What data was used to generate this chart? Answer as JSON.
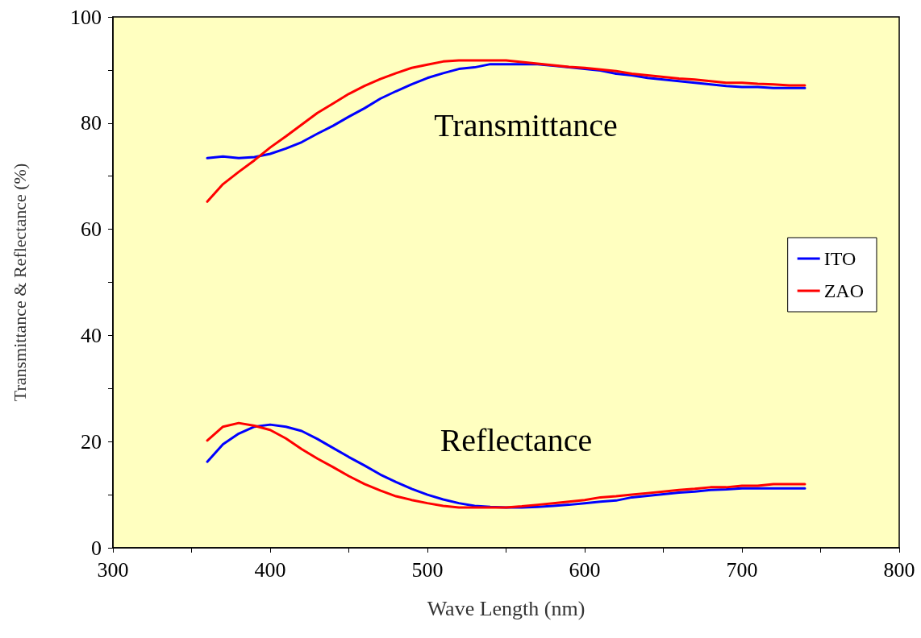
{
  "chart_data": {
    "type": "line",
    "xlabel": "Wave Length (nm)",
    "ylabel": "Transmittance & Reflectance (%)",
    "x": [
      360,
      370,
      380,
      390,
      400,
      410,
      420,
      430,
      440,
      450,
      460,
      470,
      480,
      490,
      500,
      510,
      520,
      530,
      540,
      550,
      560,
      570,
      580,
      590,
      600,
      610,
      620,
      630,
      640,
      650,
      660,
      670,
      680,
      690,
      700,
      710,
      720,
      730,
      740
    ],
    "series": [
      {
        "name": "ITO",
        "color": "#0000ff",
        "values": [
          73.4,
          73.7,
          73.4,
          73.6,
          74.2,
          75.2,
          76.4,
          78.0,
          79.5,
          81.2,
          82.8,
          84.6,
          86.0,
          87.3,
          88.5,
          89.4,
          90.2,
          90.5,
          91.1,
          91.1,
          91.1,
          91.1,
          90.8,
          90.5,
          90.2,
          89.9,
          89.3,
          89.0,
          88.5,
          88.2,
          87.9,
          87.6,
          87.3,
          87.0,
          86.8,
          86.8,
          86.6,
          86.6,
          86.6
        ]
      },
      {
        "name": "ZAO",
        "color": "#ff0000",
        "values": [
          65.2,
          68.5,
          70.8,
          73.0,
          75.4,
          77.5,
          79.7,
          81.9,
          83.7,
          85.5,
          87.0,
          88.3,
          89.4,
          90.4,
          91.0,
          91.6,
          91.8,
          91.8,
          91.8,
          91.8,
          91.5,
          91.2,
          90.9,
          90.6,
          90.4,
          90.1,
          89.8,
          89.3,
          89.0,
          88.7,
          88.4,
          88.2,
          87.9,
          87.6,
          87.6,
          87.4,
          87.3,
          87.1,
          87.1
        ]
      },
      {
        "color": "#0000ff",
        "values": [
          16.2,
          19.5,
          21.5,
          22.8,
          23.2,
          22.8,
          22.0,
          20.5,
          18.8,
          17.1,
          15.5,
          13.8,
          12.4,
          11.1,
          10.0,
          9.1,
          8.4,
          7.9,
          7.7,
          7.6,
          7.6,
          7.7,
          7.9,
          8.1,
          8.4,
          8.7,
          8.9,
          9.5,
          9.8,
          10.1,
          10.4,
          10.6,
          10.9,
          11.0,
          11.2,
          11.2,
          11.2,
          11.2,
          11.2
        ]
      },
      {
        "color": "#ff0000",
        "values": [
          20.2,
          22.8,
          23.5,
          23.0,
          22.2,
          20.6,
          18.6,
          16.8,
          15.2,
          13.5,
          12.0,
          10.8,
          9.7,
          9.0,
          8.4,
          7.9,
          7.6,
          7.6,
          7.6,
          7.6,
          7.8,
          8.1,
          8.4,
          8.7,
          9.0,
          9.5,
          9.7,
          10.0,
          10.3,
          10.6,
          10.9,
          11.1,
          11.4,
          11.4,
          11.7,
          11.7,
          12.0,
          12.0,
          12.0
        ]
      }
    ],
    "xlim": [
      300,
      800
    ],
    "xticks": [
      300,
      {
        "value": 350,
        "label": null
      },
      400,
      {
        "value": 450,
        "label": null
      },
      500,
      {
        "value": 550,
        "label": null
      },
      600,
      {
        "value": 650,
        "label": null
      },
      700,
      {
        "value": 750,
        "label": null
      },
      800
    ],
    "ylim": [
      0,
      100
    ],
    "yticks": [
      0,
      {
        "value": 10,
        "label": null
      },
      20,
      {
        "value": 30,
        "label": null
      },
      40,
      {
        "value": 50,
        "label": null
      },
      60,
      {
        "value": 70,
        "label": null
      },
      80,
      {
        "value": 90,
        "label": null
      },
      100
    ],
    "annotations": [
      "Transmittance",
      "Reflectance"
    ],
    "grid": false,
    "legend": "right",
    "marker": "none",
    "line_style": "solid"
  }
}
